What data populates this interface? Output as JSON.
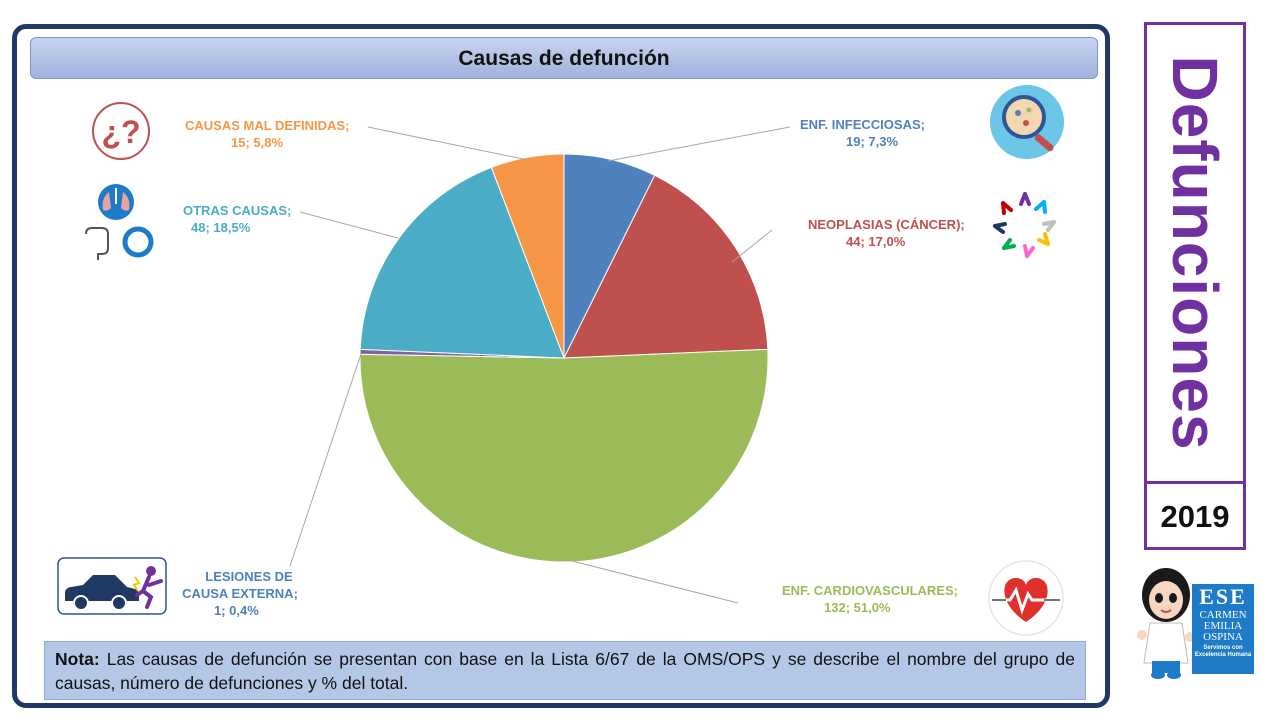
{
  "title": "Causas de defunción",
  "side_title": "Defunciones",
  "year": "2019",
  "note": {
    "label": "Nota:",
    "text": "Las causas de defunción se presentan con base en la Lista 6/67 de la OMS/OPS y se describe el nombre del grupo de causas, número de defunciones y % del total."
  },
  "logo": {
    "ese": "ESE",
    "line1": "CARMEN",
    "line2": "EMILIA",
    "line3": "OSPINA",
    "tagline": "Servimos con Excelencia Humana"
  },
  "chart_data": {
    "type": "pie",
    "slices": [
      {
        "name": "ENF. INFECCIOSAS;",
        "value": 19,
        "percent": "7,3%",
        "value_label": "19; 7,3%",
        "color": "#4f81bd"
      },
      {
        "name": "NEOPLASIAS (CÁNCER);",
        "value": 44,
        "percent": "17,0%",
        "value_label": "44; 17,0%",
        "color": "#c0504d"
      },
      {
        "name": "ENF. CARDIOVASCULARES;",
        "value": 132,
        "percent": "51,0%",
        "value_label": "132; 51,0%",
        "color": "#9bbb59"
      },
      {
        "name": "LESIONES DE CAUSA EXTERNA;",
        "value": 1,
        "percent": "0,4%",
        "value_label": "1; 0,4%",
        "color": "#8064a2"
      },
      {
        "name": "OTRAS CAUSAS;",
        "value": 48,
        "percent": "18,5%",
        "value_label": "48; 18,5%",
        "color": "#4bacc6"
      },
      {
        "name": "CAUSAS MAL DEFINIDAS;",
        "value": 15,
        "percent": "5,8%",
        "value_label": "15; 5,8%",
        "color": "#f79646"
      }
    ]
  }
}
